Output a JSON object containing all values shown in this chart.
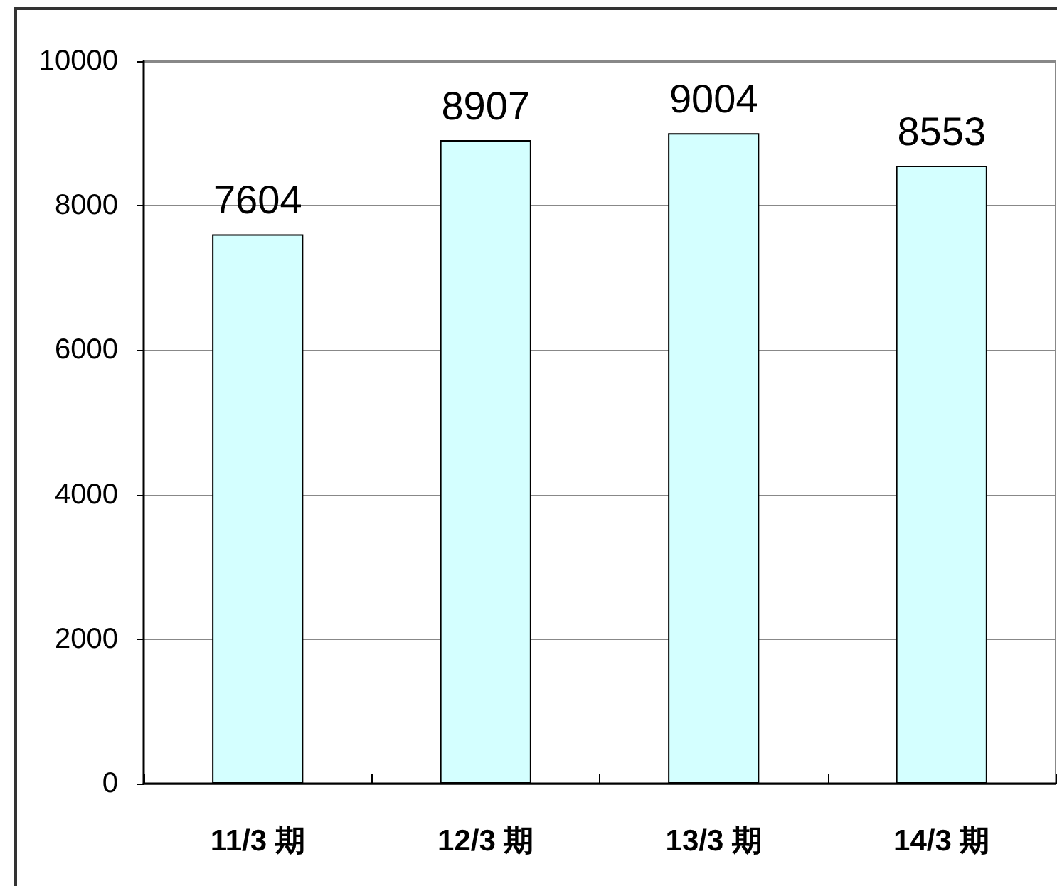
{
  "chart_data": {
    "type": "bar",
    "categories": [
      "11/3 期",
      "12/3 期",
      "13/3 期",
      "14/3 期"
    ],
    "values": [
      7604,
      8907,
      9004,
      8553
    ],
    "color": "#d4ffff",
    "ylim": [
      0,
      10000
    ],
    "yticks": [
      0,
      2000,
      4000,
      6000,
      8000,
      10000
    ],
    "grid": "y",
    "data_labels": true
  }
}
